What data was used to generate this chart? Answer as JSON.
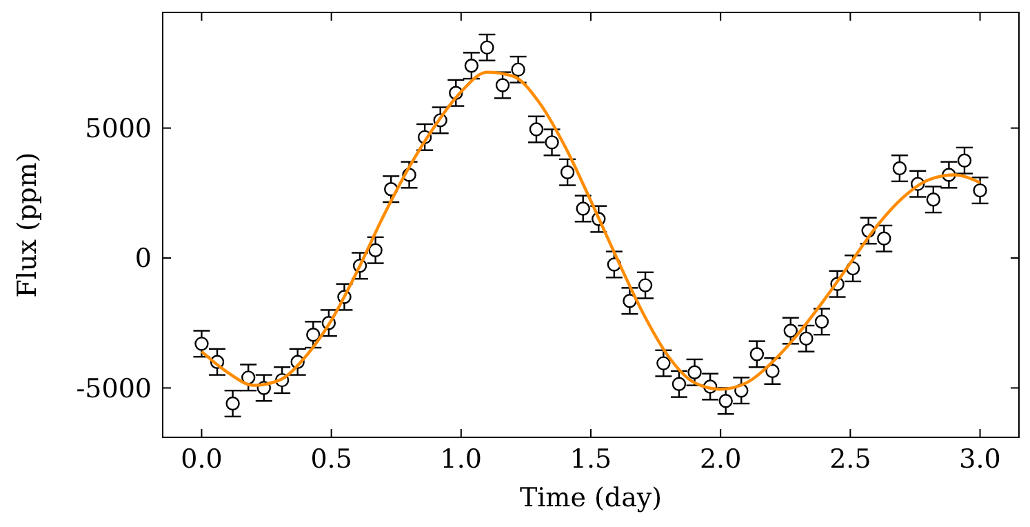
{
  "chart_data": {
    "type": "scatter",
    "xlabel": "Time (day)",
    "ylabel": "Flux (ppm)",
    "xlim": [
      -0.15,
      3.15
    ],
    "ylim": [
      -6900,
      9450
    ],
    "xticks": [
      {
        "value": 0,
        "label": "0.0"
      },
      {
        "value": 0.5,
        "label": "0.5"
      },
      {
        "value": 1,
        "label": "1.0"
      },
      {
        "value": 1.5,
        "label": "1.5"
      },
      {
        "value": 2,
        "label": "2.0"
      },
      {
        "value": 2.5,
        "label": "2.5"
      },
      {
        "value": 3,
        "label": "3.0"
      }
    ],
    "yticks": [
      -5000,
      0,
      5000
    ],
    "grid": false,
    "series": [
      {
        "color": "#000000",
        "marker": "circle",
        "x": [
          0,
          0.06,
          0.12,
          0.18,
          0.24,
          0.31,
          0.37,
          0.43,
          0.49,
          0.55,
          0.61,
          0.67,
          0.73,
          0.8,
          0.86,
          0.92,
          0.98,
          1.04,
          1.1,
          1.16,
          1.22,
          1.29,
          1.35,
          1.41,
          1.47,
          1.53,
          1.59,
          1.65,
          1.71,
          1.78,
          1.84,
          1.9,
          1.96,
          2.02,
          2.08,
          2.14,
          2.2,
          2.27,
          2.33,
          2.39,
          2.45,
          2.51,
          2.57,
          2.63,
          2.69,
          2.76,
          2.82,
          2.88,
          2.94,
          3.0
        ],
        "values": [
          -3300,
          -4000,
          -5600,
          -4600,
          -5000,
          -4700,
          -4000,
          -2950,
          -2500,
          -1500,
          -300,
          300,
          2650,
          3200,
          4650,
          5300,
          6350,
          7400,
          8100,
          6650,
          7250,
          4950,
          4450,
          3300,
          1900,
          1500,
          -250,
          -1650,
          -1050,
          -4050,
          -4850,
          -4400,
          -4950,
          -5500,
          -5100,
          -3700,
          -4350,
          -2800,
          -3100,
          -2450,
          -1000,
          -400,
          1050,
          750,
          3450,
          2850,
          2250,
          3200,
          3750,
          2600
        ],
        "errors": [
          500,
          500,
          500,
          500,
          500,
          500,
          500,
          500,
          500,
          500,
          500,
          500,
          500,
          500,
          500,
          500,
          500,
          500,
          500,
          500,
          500,
          500,
          500,
          500,
          500,
          500,
          500,
          500,
          500,
          500,
          500,
          500,
          500,
          500,
          500,
          500,
          500,
          500,
          500,
          500,
          500,
          500,
          500,
          500,
          500,
          500,
          500,
          500,
          500,
          500
        ]
      },
      {
        "type": "line",
        "color": "#ff8c00",
        "marker": "none",
        "line_style": "solid",
        "x": [
          0,
          0.1,
          0.2,
          0.3,
          0.4,
          0.5,
          0.6,
          0.7,
          0.8,
          0.9,
          1.0,
          1.1,
          1.2,
          1.3,
          1.4,
          1.5,
          1.6,
          1.7,
          1.8,
          1.9,
          2.0,
          2.1,
          2.2,
          2.3,
          2.4,
          2.5,
          2.6,
          2.7,
          2.8,
          2.9,
          3.0
        ],
        "values": [
          -3600,
          -4400,
          -4900,
          -4700,
          -3800,
          -2400,
          -500,
          1600,
          3500,
          5100,
          6400,
          7150,
          7000,
          6000,
          4300,
          2200,
          0,
          -2100,
          -3800,
          -4800,
          -5050,
          -4800,
          -4000,
          -2900,
          -1600,
          -200,
          1200,
          2300,
          3000,
          3200,
          2900
        ]
      }
    ]
  }
}
